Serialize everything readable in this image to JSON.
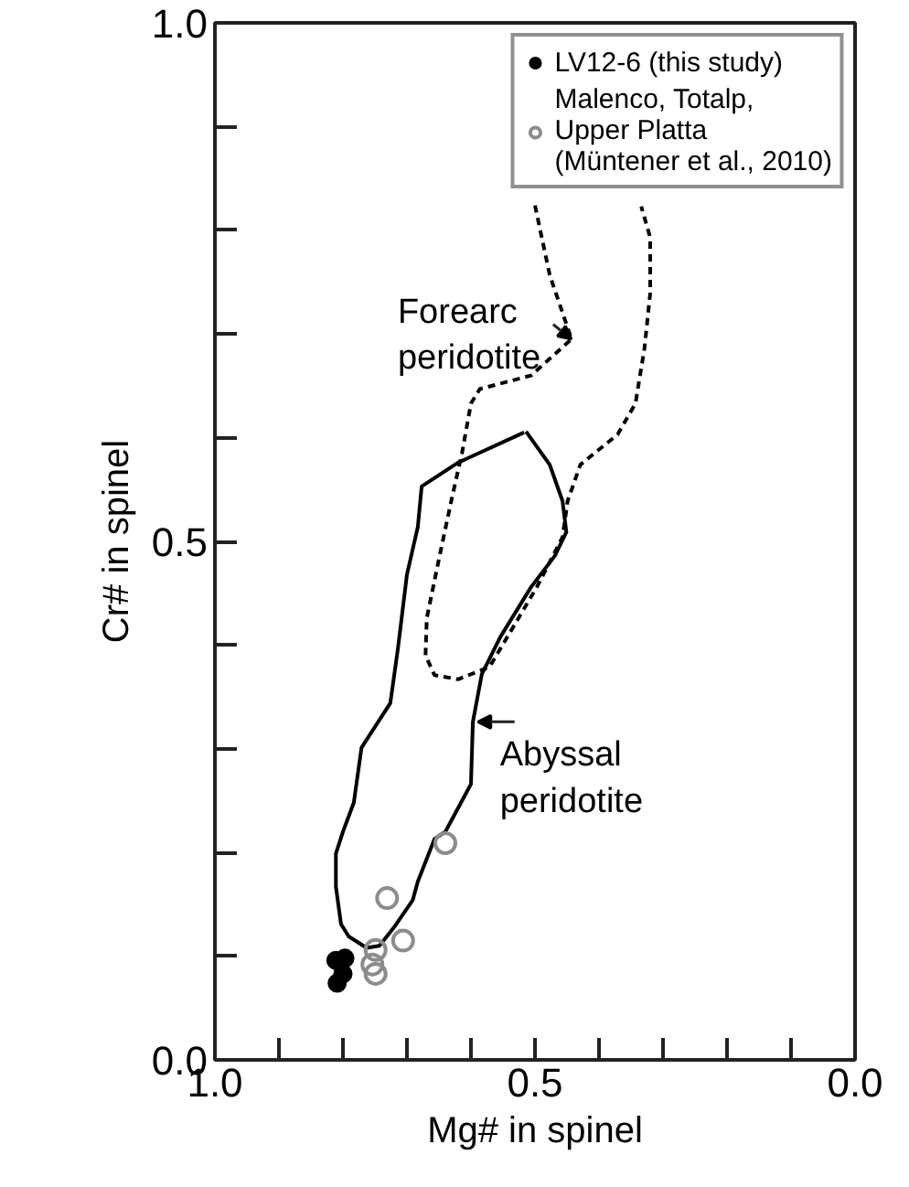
{
  "chart_data": {
    "type": "scatter",
    "xlabel": "Mg# in spinel",
    "ylabel": "Cr# in spinel",
    "xlim": [
      1.0,
      0.0
    ],
    "ylim": [
      0.0,
      1.0
    ],
    "xticks": [
      {
        "value": 1.0,
        "label": "1.0"
      },
      {
        "value": 0.9,
        "label": null
      },
      {
        "value": 0.8,
        "label": null
      },
      {
        "value": 0.7,
        "label": null
      },
      {
        "value": 0.6,
        "label": null
      },
      {
        "value": 0.5,
        "label": "0.5"
      },
      {
        "value": 0.4,
        "label": null
      },
      {
        "value": 0.3,
        "label": null
      },
      {
        "value": 0.2,
        "label": null
      },
      {
        "value": 0.1,
        "label": null
      },
      {
        "value": 0.0,
        "label": "0.0"
      }
    ],
    "yticks": [
      {
        "value": 0.0,
        "label": "0.0"
      },
      {
        "value": 0.1,
        "label": null
      },
      {
        "value": 0.2,
        "label": null
      },
      {
        "value": 0.3,
        "label": null
      },
      {
        "value": 0.4,
        "label": null
      },
      {
        "value": 0.5,
        "label": "0.5"
      },
      {
        "value": 0.6,
        "label": null
      },
      {
        "value": 0.7,
        "label": null
      },
      {
        "value": 0.8,
        "label": null
      },
      {
        "value": 0.9,
        "label": null
      },
      {
        "value": 1.0,
        "label": "1.0"
      }
    ],
    "grid": false,
    "legend": "top right",
    "marker": "circle",
    "series": [
      {
        "type": "line",
        "marker": "none",
        "color": "#000000",
        "line_style": "dashed",
        "x": [
          0.5,
          0.477,
          0.443,
          0.506,
          0.586,
          0.6,
          0.614,
          0.629,
          0.649,
          0.669,
          0.671,
          0.657,
          0.62,
          0.571,
          0.543,
          0.497,
          0.457,
          0.449,
          0.429,
          0.371,
          0.343,
          0.329,
          0.32,
          0.32,
          0.334
        ],
        "values": [
          0.824,
          0.757,
          0.695,
          0.66,
          0.647,
          0.633,
          0.585,
          0.544,
          0.486,
          0.426,
          0.39,
          0.371,
          0.367,
          0.379,
          0.408,
          0.456,
          0.504,
          0.539,
          0.574,
          0.603,
          0.633,
          0.686,
          0.739,
          0.793,
          0.823
        ]
      },
      {
        "type": "line",
        "marker": "none",
        "color": "#000000",
        "line_style": "solid",
        "x": [
          0.514,
          0.477,
          0.457,
          0.451,
          0.469,
          0.506,
          0.554,
          0.583,
          0.597,
          0.6,
          0.64,
          0.657,
          0.683,
          0.691,
          0.72,
          0.743,
          0.763,
          0.791,
          0.803,
          0.811,
          0.811,
          0.8,
          0.783,
          0.771,
          0.726,
          0.714,
          0.7,
          0.683,
          0.677,
          0.62,
          0.517
        ],
        "values": [
          0.606,
          0.574,
          0.539,
          0.509,
          0.486,
          0.456,
          0.408,
          0.372,
          0.326,
          0.266,
          0.22,
          0.213,
          0.172,
          0.154,
          0.128,
          0.11,
          0.108,
          0.119,
          0.131,
          0.167,
          0.199,
          0.22,
          0.248,
          0.301,
          0.344,
          0.397,
          0.468,
          0.514,
          0.553,
          0.576,
          0.605
        ]
      },
      {
        "type": "scatter",
        "name": "LV12-6 (this study)",
        "color": "#000000",
        "x": [
          0.811,
          0.797,
          0.809,
          0.8
        ],
        "values": [
          0.096,
          0.098,
          0.074,
          0.083
        ]
      },
      {
        "name": "Malenco, Totalp,\nUpper Platta\n(Müntener et al., 2010)",
        "color": "#8c8c8c",
        "x": [
          0.749,
          0.754,
          0.749,
          0.706,
          0.731,
          0.64
        ],
        "values": [
          0.106,
          0.092,
          0.083,
          0.115,
          0.156,
          0.209
        ]
      }
    ],
    "annotations": [
      {
        "text": "Forearc\nperidotite",
        "x": 0.443,
        "y": 0.695
      },
      {
        "text": "Abyssal\nperidotite",
        "x": 0.589,
        "y": 0.326
      }
    ]
  }
}
